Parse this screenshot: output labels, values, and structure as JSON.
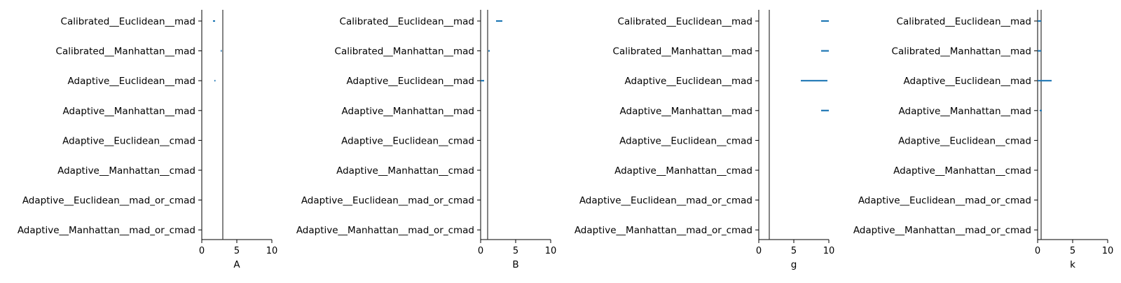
{
  "colors": {
    "series": "#1f77b4",
    "axis": "#000000",
    "reference_line": "#333333"
  },
  "chart_data": [
    {
      "type": "interval",
      "xlabel": "A",
      "xlim": [
        0,
        10
      ],
      "xticks": [
        "0",
        "5",
        "10"
      ],
      "categories": [
        "Calibrated__Euclidean__mad",
        "Calibrated__Manhattan__mad",
        "Adaptive__Euclidean__mad",
        "Adaptive__Manhattan__mad",
        "Adaptive__Euclidean__cmad",
        "Adaptive__Manhattan__cmad",
        "Adaptive__Euclidean__mad_or_cmad",
        "Adaptive__Manhattan__mad_or_cmad"
      ],
      "reference_value": 3.0,
      "intervals": [
        [
          1.6,
          1.9
        ],
        [
          2.7,
          2.8
        ],
        [
          1.8,
          1.9
        ],
        null,
        null,
        null,
        null,
        null
      ]
    },
    {
      "type": "interval",
      "xlabel": "B",
      "xlim": [
        0,
        10
      ],
      "xticks": [
        "0",
        "5",
        "10"
      ],
      "categories": [
        "Calibrated__Euclidean__mad",
        "Calibrated__Manhattan__mad",
        "Adaptive__Euclidean__mad",
        "Adaptive__Manhattan__mad",
        "Adaptive__Euclidean__cmad",
        "Adaptive__Manhattan__cmad",
        "Adaptive__Euclidean__mad_or_cmad",
        "Adaptive__Manhattan__mad_or_cmad"
      ],
      "reference_value": 1.0,
      "intervals": [
        [
          2.2,
          3.1
        ],
        [
          1.1,
          1.3
        ],
        [
          0.0,
          0.5
        ],
        null,
        null,
        null,
        null,
        null
      ]
    },
    {
      "type": "interval",
      "xlabel": "g",
      "xlim": [
        0,
        10
      ],
      "xticks": [
        "0",
        "5",
        "10"
      ],
      "categories": [
        "Calibrated__Euclidean__mad",
        "Calibrated__Manhattan__mad",
        "Adaptive__Euclidean__mad",
        "Adaptive__Manhattan__mad",
        "Adaptive__Euclidean__cmad",
        "Adaptive__Manhattan__cmad",
        "Adaptive__Euclidean__mad_or_cmad",
        "Adaptive__Manhattan__mad_or_cmad"
      ],
      "reference_value": 1.5,
      "intervals": [
        [
          8.9,
          10.0
        ],
        [
          8.9,
          10.0
        ],
        [
          6.0,
          9.8
        ],
        [
          8.9,
          10.0
        ],
        null,
        null,
        null,
        null
      ]
    },
    {
      "type": "interval",
      "xlabel": "k",
      "xlim": [
        0,
        10
      ],
      "xticks": [
        "0",
        "5",
        "10"
      ],
      "categories": [
        "Calibrated__Euclidean__mad",
        "Calibrated__Manhattan__mad",
        "Adaptive__Euclidean__mad",
        "Adaptive__Manhattan__mad",
        "Adaptive__Euclidean__cmad",
        "Adaptive__Manhattan__cmad",
        "Adaptive__Euclidean__mad_or_cmad",
        "Adaptive__Manhattan__mad_or_cmad"
      ],
      "reference_value": 0.5,
      "intervals": [
        [
          0.0,
          0.5
        ],
        [
          0.0,
          0.5
        ],
        [
          0.0,
          2.0
        ],
        [
          0.3,
          0.6
        ],
        null,
        null,
        null,
        null
      ]
    }
  ]
}
